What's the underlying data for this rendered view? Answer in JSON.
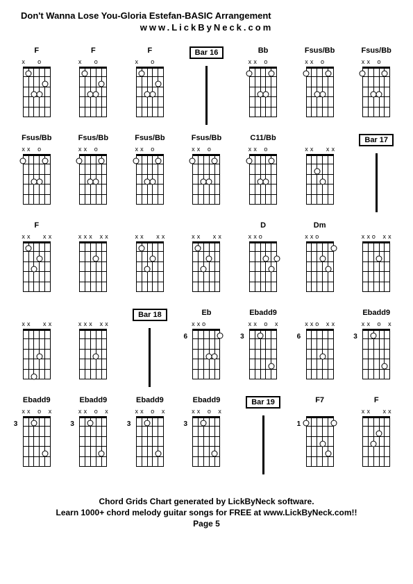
{
  "title": "Don't Wanna Lose You-Gloria Estefan-BASIC Arrangement",
  "subtitle": "www.LickByNeck.com",
  "footer1": "Chord Grids Chart generated by LickByNeck software.",
  "footer2": "Learn 1000+ chord melody guitar songs for FREE at www.LickByNeck.com!!",
  "footer3": "Page 5",
  "cells": [
    {
      "type": "chord",
      "label": "F",
      "markers": [
        "x",
        "",
        "",
        "o",
        "",
        ""
      ],
      "dots": [
        {
          "s": 1,
          "f": 1
        },
        {
          "s": 4,
          "f": 2
        },
        {
          "s": 2,
          "f": 3
        },
        {
          "s": 3,
          "f": 3
        }
      ]
    },
    {
      "type": "chord",
      "label": "F",
      "markers": [
        "x",
        "",
        "",
        "o",
        "",
        ""
      ],
      "dots": [
        {
          "s": 1,
          "f": 1
        },
        {
          "s": 4,
          "f": 2
        },
        {
          "s": 2,
          "f": 3
        },
        {
          "s": 3,
          "f": 3
        }
      ]
    },
    {
      "type": "chord",
      "label": "F",
      "markers": [
        "x",
        "",
        "",
        "o",
        "",
        ""
      ],
      "dots": [
        {
          "s": 1,
          "f": 1
        },
        {
          "s": 4,
          "f": 2
        },
        {
          "s": 2,
          "f": 3
        },
        {
          "s": 3,
          "f": 3
        }
      ]
    },
    {
      "type": "bar",
      "label": "Bar 16"
    },
    {
      "type": "chord",
      "label": "Bb",
      "markers": [
        "x",
        "x",
        "",
        "o",
        "",
        ""
      ],
      "dots": [
        {
          "s": 0,
          "f": 1
        },
        {
          "s": 4,
          "f": 1
        },
        {
          "s": 2,
          "f": 3
        },
        {
          "s": 3,
          "f": 3
        }
      ]
    },
    {
      "type": "chord",
      "label": "Fsus/Bb",
      "markers": [
        "x",
        "x",
        "",
        "o",
        "",
        ""
      ],
      "dots": [
        {
          "s": 0,
          "f": 1
        },
        {
          "s": 4,
          "f": 1
        },
        {
          "s": 2,
          "f": 3
        },
        {
          "s": 3,
          "f": 3
        }
      ]
    },
    {
      "type": "chord",
      "label": "Fsus/Bb",
      "markers": [
        "x",
        "x",
        "",
        "o",
        "",
        ""
      ],
      "dots": [
        {
          "s": 0,
          "f": 1
        },
        {
          "s": 4,
          "f": 1
        },
        {
          "s": 2,
          "f": 3
        },
        {
          "s": 3,
          "f": 3
        }
      ]
    },
    {
      "type": "chord",
      "label": "Fsus/Bb",
      "markers": [
        "x",
        "x",
        "",
        "o",
        "",
        ""
      ],
      "dots": [
        {
          "s": 0,
          "f": 1
        },
        {
          "s": 4,
          "f": 1
        },
        {
          "s": 2,
          "f": 3
        },
        {
          "s": 3,
          "f": 3
        }
      ]
    },
    {
      "type": "chord",
      "label": "Fsus/Bb",
      "markers": [
        "x",
        "x",
        "",
        "o",
        "",
        ""
      ],
      "dots": [
        {
          "s": 0,
          "f": 1
        },
        {
          "s": 4,
          "f": 1
        },
        {
          "s": 2,
          "f": 3
        },
        {
          "s": 3,
          "f": 3
        }
      ]
    },
    {
      "type": "chord",
      "label": "Fsus/Bb",
      "markers": [
        "x",
        "x",
        "",
        "o",
        "",
        ""
      ],
      "dots": [
        {
          "s": 0,
          "f": 1
        },
        {
          "s": 4,
          "f": 1
        },
        {
          "s": 2,
          "f": 3
        },
        {
          "s": 3,
          "f": 3
        }
      ]
    },
    {
      "type": "chord",
      "label": "Fsus/Bb",
      "markers": [
        "x",
        "x",
        "",
        "o",
        "",
        ""
      ],
      "dots": [
        {
          "s": 0,
          "f": 1
        },
        {
          "s": 4,
          "f": 1
        },
        {
          "s": 2,
          "f": 3
        },
        {
          "s": 3,
          "f": 3
        }
      ]
    },
    {
      "type": "chord",
      "label": "C11/Bb",
      "markers": [
        "x",
        "x",
        "",
        "o",
        "",
        ""
      ],
      "dots": [
        {
          "s": 0,
          "f": 1
        },
        {
          "s": 4,
          "f": 1
        },
        {
          "s": 2,
          "f": 3
        },
        {
          "s": 3,
          "f": 3
        }
      ]
    },
    {
      "type": "chord",
      "label": "",
      "markers": [
        "x",
        "x",
        "",
        "",
        "x",
        "x"
      ],
      "dots": [
        {
          "s": 2,
          "f": 2
        },
        {
          "s": 3,
          "f": 3
        }
      ]
    },
    {
      "type": "bar",
      "label": "Bar 17"
    },
    {
      "type": "chord",
      "label": "F",
      "markers": [
        "x",
        "x",
        "",
        "",
        "x",
        "x"
      ],
      "dots": [
        {
          "s": 1,
          "f": 1
        },
        {
          "s": 3,
          "f": 2
        },
        {
          "s": 2,
          "f": 3
        }
      ]
    },
    {
      "type": "chord",
      "label": "",
      "markers": [
        "x",
        "x",
        "x",
        "",
        "x",
        "x"
      ],
      "dots": [
        {
          "s": 3,
          "f": 2
        }
      ]
    },
    {
      "type": "chord",
      "label": "",
      "markers": [
        "x",
        "x",
        "",
        "",
        "x",
        "x"
      ],
      "dots": [
        {
          "s": 1,
          "f": 1
        },
        {
          "s": 3,
          "f": 2
        },
        {
          "s": 2,
          "f": 3
        }
      ]
    },
    {
      "type": "chord",
      "label": "",
      "markers": [
        "x",
        "x",
        "",
        "",
        "x",
        "x"
      ],
      "dots": [
        {
          "s": 1,
          "f": 1
        },
        {
          "s": 3,
          "f": 2
        },
        {
          "s": 2,
          "f": 3
        }
      ]
    },
    {
      "type": "chord",
      "label": "D",
      "markers": [
        "x",
        "x",
        "o",
        "",
        "",
        ""
      ],
      "dots": [
        {
          "s": 3,
          "f": 2
        },
        {
          "s": 5,
          "f": 2
        },
        {
          "s": 4,
          "f": 3
        }
      ]
    },
    {
      "type": "chord",
      "label": "Dm",
      "markers": [
        "x",
        "x",
        "o",
        "",
        "",
        ""
      ],
      "dots": [
        {
          "s": 5,
          "f": 1
        },
        {
          "s": 3,
          "f": 2
        },
        {
          "s": 4,
          "f": 3
        }
      ]
    },
    {
      "type": "chord",
      "label": "",
      "markers": [
        "x",
        "x",
        "o",
        "",
        "x",
        "x"
      ],
      "dots": [
        {
          "s": 3,
          "f": 2
        }
      ]
    },
    {
      "type": "chord",
      "label": "",
      "markers": [
        "x",
        "x",
        "",
        "",
        "x",
        "x"
      ],
      "dots": [
        {
          "s": 3,
          "f": 3
        },
        {
          "s": 2,
          "f": 5
        }
      ]
    },
    {
      "type": "chord",
      "label": "",
      "markers": [
        "x",
        "x",
        "x",
        "",
        "x",
        "x"
      ],
      "dots": [
        {
          "s": 3,
          "f": 3
        }
      ]
    },
    {
      "type": "bar",
      "label": "Bar 18"
    },
    {
      "type": "chord",
      "label": "Eb",
      "fretNum": "6",
      "markers": [
        "x",
        "x",
        "o",
        "",
        "",
        ""
      ],
      "dots": [
        {
          "s": 4,
          "f": 3
        },
        {
          "s": 3,
          "f": 3
        },
        {
          "s": 5,
          "f": 1
        }
      ]
    },
    {
      "type": "chord",
      "label": "Ebadd9",
      "fretNum": "3",
      "markers": [
        "x",
        "x",
        "",
        "o",
        "",
        "x"
      ],
      "dots": [
        {
          "s": 2,
          "f": 1
        },
        {
          "s": 4,
          "f": 4
        }
      ]
    },
    {
      "type": "chord",
      "label": "",
      "fretNum": "6",
      "markers": [
        "x",
        "x",
        "o",
        "",
        "x",
        "x"
      ],
      "dots": [
        {
          "s": 3,
          "f": 3
        }
      ]
    },
    {
      "type": "chord",
      "label": "Ebadd9",
      "fretNum": "3",
      "markers": [
        "x",
        "x",
        "",
        "o",
        "",
        "x"
      ],
      "dots": [
        {
          "s": 2,
          "f": 1
        },
        {
          "s": 4,
          "f": 4
        }
      ]
    },
    {
      "type": "chord",
      "label": "Ebadd9",
      "fretNum": "3",
      "markers": [
        "x",
        "x",
        "",
        "o",
        "",
        "x"
      ],
      "dots": [
        {
          "s": 2,
          "f": 1
        },
        {
          "s": 4,
          "f": 4
        }
      ]
    },
    {
      "type": "chord",
      "label": "Ebadd9",
      "fretNum": "3",
      "markers": [
        "x",
        "x",
        "",
        "o",
        "",
        "x"
      ],
      "dots": [
        {
          "s": 2,
          "f": 1
        },
        {
          "s": 4,
          "f": 4
        }
      ]
    },
    {
      "type": "chord",
      "label": "Ebadd9",
      "fretNum": "3",
      "markers": [
        "x",
        "x",
        "",
        "o",
        "",
        "x"
      ],
      "dots": [
        {
          "s": 2,
          "f": 1
        },
        {
          "s": 4,
          "f": 4
        }
      ]
    },
    {
      "type": "chord",
      "label": "Ebadd9",
      "fretNum": "3",
      "markers": [
        "x",
        "x",
        "",
        "o",
        "",
        "x"
      ],
      "dots": [
        {
          "s": 2,
          "f": 1
        },
        {
          "s": 4,
          "f": 4
        }
      ]
    },
    {
      "type": "bar",
      "label": "Bar 19"
    },
    {
      "type": "chord",
      "label": "F7",
      "fretNum": "1",
      "markers": [
        "",
        "",
        "",
        "",
        "",
        ""
      ],
      "dots": [
        {
          "s": 0,
          "f": 1
        },
        {
          "s": 5,
          "f": 1
        },
        {
          "s": 4,
          "f": 4
        },
        {
          "s": 3,
          "f": 3
        }
      ]
    },
    {
      "type": "chord",
      "label": "F",
      "markers": [
        "x",
        "x",
        "",
        "",
        "x",
        "x"
      ],
      "dots": [
        {
          "s": 3,
          "f": 2
        },
        {
          "s": 2,
          "f": 3
        }
      ]
    }
  ]
}
